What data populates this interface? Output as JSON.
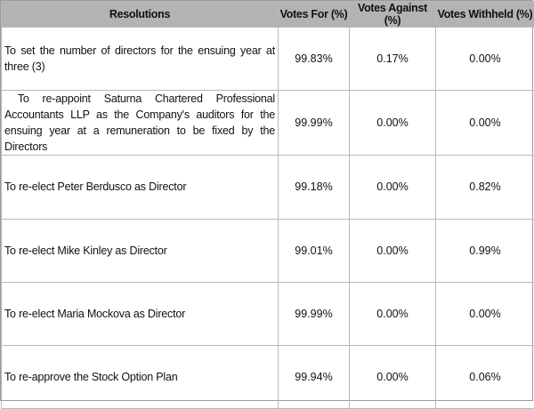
{
  "headers": {
    "resolutions": "Resolutions",
    "votes_for": "Votes For (%)",
    "votes_against": "Votes Against (%)",
    "votes_withheld": "Votes Withheld (%)"
  },
  "rows": [
    {
      "resolution": "To set the number of directors for the ensuing year at three (3)",
      "for": "99.83%",
      "against": "0.17%",
      "withheld": "0.00%"
    },
    {
      "resolution": " To re-appoint Saturna Chartered Professional Accountants LLP as the Company's auditors for the ensuing year at a remuneration to be fixed by the Directors",
      "for": "99.99%",
      "against": "0.00%",
      "withheld": "0.00%"
    },
    {
      "resolution": "To re-elect Peter Berdusco as Director",
      "for": "99.18%",
      "against": "0.00%",
      "withheld": "0.82%"
    },
    {
      "resolution": "To re-elect Mike Kinley as Director",
      "for": "99.01%",
      "against": "0.00%",
      "withheld": "0.99%"
    },
    {
      "resolution": "To re-elect Maria Mockova as Director",
      "for": "99.99%",
      "against": "0.00%",
      "withheld": "0.00%"
    },
    {
      "resolution": "To re-approve the Stock Option Plan",
      "for": "99.94%",
      "against": "0.00%",
      "withheld": "0.06%"
    }
  ]
}
